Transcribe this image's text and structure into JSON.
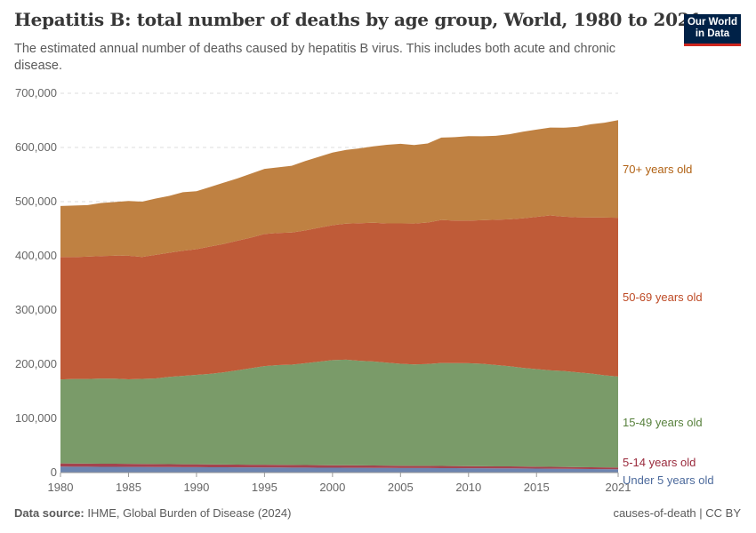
{
  "header": {
    "title": "Hepatitis B: total number of deaths by age group, World, 1980 to 2021",
    "subtitle": "The estimated annual number of deaths caused by hepatitis B virus. This includes both acute and chronic disease.",
    "logo_text": "Our World in Data"
  },
  "footer": {
    "source_label": "Data source:",
    "source_text": "IHME, Global Burden of Disease (2024)",
    "right_text": "causes-of-death | CC BY"
  },
  "chart_data": {
    "type": "area",
    "stacked": true,
    "title": "Hepatitis B: total number of deaths by age group, World, 1980 to 2021",
    "xlabel": "",
    "ylabel": "",
    "xlim": [
      1980,
      2021
    ],
    "ylim": [
      0,
      700000
    ],
    "grid": "horizontal dashed",
    "legend": "right (inline labels)",
    "x_ticks": [
      "1980",
      "1985",
      "1990",
      "1995",
      "2000",
      "2005",
      "2010",
      "2015",
      "2021"
    ],
    "y_ticks": [
      "0",
      "100,000",
      "200,000",
      "300,000",
      "400,000",
      "500,000",
      "600,000",
      "700,000"
    ],
    "x": [
      1980,
      1981,
      1982,
      1983,
      1984,
      1985,
      1986,
      1987,
      1988,
      1989,
      1990,
      1991,
      1992,
      1993,
      1994,
      1995,
      1996,
      1997,
      1998,
      1999,
      2000,
      2001,
      2002,
      2003,
      2004,
      2005,
      2006,
      2007,
      2008,
      2009,
      2010,
      2011,
      2012,
      2013,
      2014,
      2015,
      2016,
      2017,
      2018,
      2019,
      2020,
      2021
    ],
    "series": [
      {
        "name": "Under 5 years old",
        "color": "#6c84b0",
        "label_color": "#4c6a9c",
        "values": [
          11000,
          10900,
          10800,
          10700,
          10600,
          10500,
          10400,
          10300,
          10200,
          10100,
          10000,
          9900,
          9800,
          9700,
          9600,
          9500,
          9400,
          9300,
          9200,
          9100,
          9000,
          8900,
          8800,
          8700,
          8600,
          8500,
          8400,
          8300,
          8200,
          8100,
          8000,
          7900,
          7800,
          7700,
          7550,
          7400,
          7200,
          7000,
          6800,
          6600,
          6400,
          6200
        ]
      },
      {
        "name": "5-14 years old",
        "color": "#a4434e",
        "label_color": "#9a2a3c",
        "values": [
          6000,
          5930,
          5860,
          5790,
          5720,
          5650,
          5580,
          5510,
          5440,
          5370,
          5300,
          5230,
          5160,
          5090,
          5020,
          4950,
          4880,
          4810,
          4740,
          4670,
          4600,
          4530,
          4460,
          4390,
          4320,
          4250,
          4180,
          4110,
          4040,
          3970,
          3900,
          3830,
          3760,
          3690,
          3620,
          3550,
          3480,
          3410,
          3340,
          3270,
          3200,
          3130
        ]
      },
      {
        "name": "15-49 years old",
        "color": "#7a9b69",
        "label_color": "#58813d",
        "values": [
          155000,
          156000,
          156000,
          157000,
          157000,
          156000,
          157000,
          158000,
          161000,
          163000,
          165000,
          167000,
          170000,
          174000,
          178000,
          182000,
          184000,
          185000,
          188000,
          191000,
          194000,
          195000,
          193000,
          192000,
          190000,
          188000,
          187000,
          188000,
          190000,
          190000,
          190000,
          189000,
          187000,
          185000,
          182000,
          180000,
          178000,
          177000,
          175000,
          173000,
          170000,
          168000
        ]
      },
      {
        "name": "50-69 years old",
        "color": "#bf5b38",
        "label_color": "#be4a25",
        "values": [
          226000,
          225000,
          226000,
          226000,
          227000,
          228000,
          225000,
          228000,
          229000,
          231000,
          232000,
          235000,
          237000,
          239000,
          241000,
          244000,
          244000,
          244000,
          245000,
          247000,
          249000,
          251000,
          254000,
          256000,
          257000,
          259000,
          260000,
          261000,
          264000,
          263000,
          263000,
          265000,
          268000,
          271000,
          276000,
          281000,
          286000,
          285000,
          286000,
          288000,
          291000,
          293000
        ]
      },
      {
        "name": "70+ years old",
        "color": "#bf8142",
        "label_color": "#b16214",
        "values": [
          94000,
          95000,
          95000,
          98000,
          99000,
          101000,
          102000,
          104000,
          105000,
          108000,
          107000,
          110000,
          113000,
          115000,
          118000,
          120000,
          121000,
          123000,
          128000,
          131000,
          134000,
          136000,
          138000,
          141000,
          145000,
          147000,
          145000,
          146000,
          152000,
          154000,
          156000,
          155000,
          155000,
          157000,
          160000,
          161000,
          162000,
          164000,
          167000,
          172000,
          175000,
          180000
        ]
      }
    ]
  }
}
